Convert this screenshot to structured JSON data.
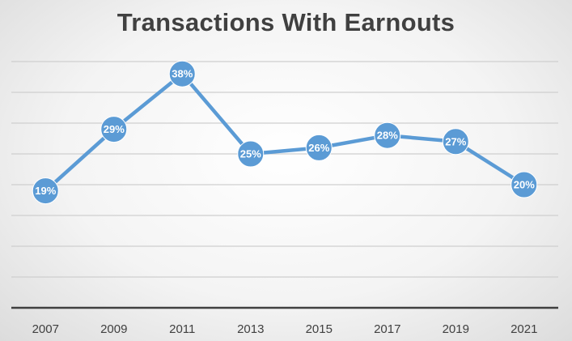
{
  "chart_data": {
    "type": "line",
    "title": "Transactions With Earnouts",
    "xlabel": "",
    "ylabel": "",
    "categories": [
      "2007",
      "2009",
      "2011",
      "2013",
      "2015",
      "2017",
      "2019",
      "2021"
    ],
    "series": [
      {
        "values": [
          19,
          29,
          38,
          25,
          26,
          28,
          27,
          20
        ]
      }
    ],
    "data_labels": [
      "19%",
      "29%",
      "38%",
      "25%",
      "26%",
      "28%",
      "27%",
      "20%"
    ],
    "ylim": [
      0,
      40
    ],
    "y_gridline_step": 5,
    "grid": true,
    "legend": "none",
    "line_color": "#5B9BD5",
    "label_color": "#FFFFFF"
  }
}
